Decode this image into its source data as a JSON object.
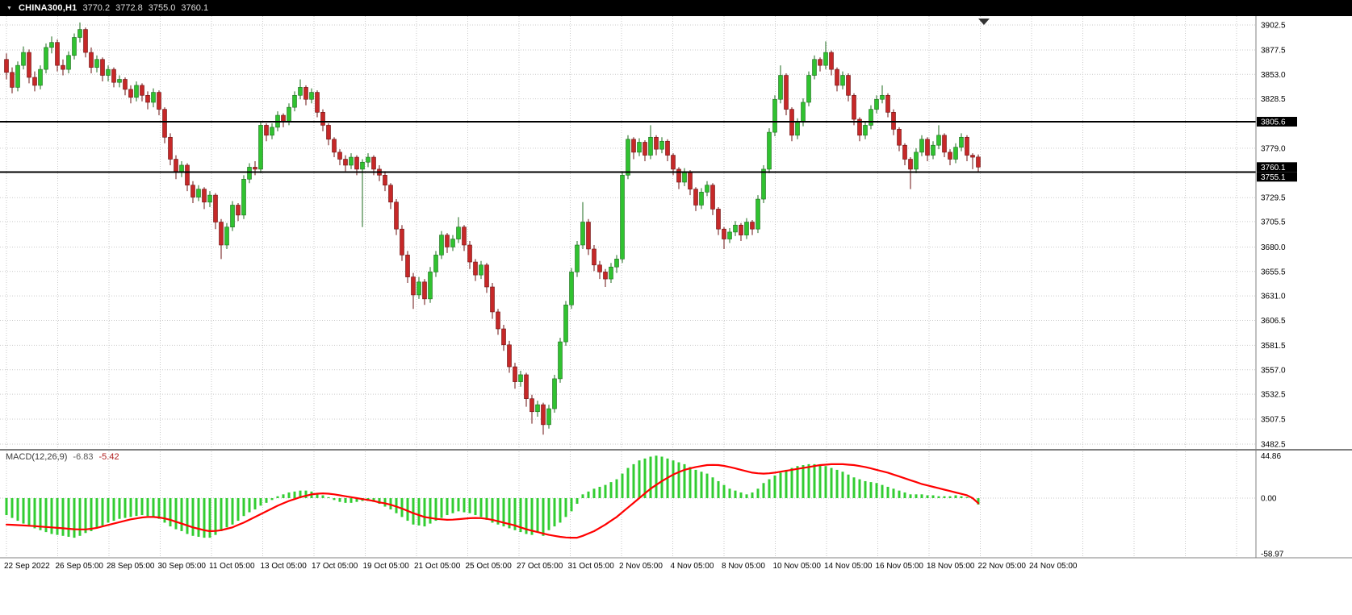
{
  "header": {
    "symbol_period": "CHINA300,H1",
    "open": "3770.2",
    "high": "3772.8",
    "low": "3755.0",
    "close": "3760.1"
  },
  "chart_data": {
    "type": "candlestick",
    "symbol": "CHINA300",
    "timeframe": "H1",
    "ylim": [
      3482.5,
      3902.5
    ],
    "price_ticks": [
      "3902.5",
      "3877.5",
      "3853.0",
      "3828.5",
      "3779.0",
      "3729.5",
      "3705.5",
      "3680.0",
      "3655.5",
      "3631.0",
      "3606.5",
      "3581.5",
      "3557.0",
      "3532.5",
      "3507.5",
      "3482.5"
    ],
    "hlines": [
      3805.6,
      3755.1
    ],
    "price_tags": [
      {
        "label": "3805.6",
        "price": 3805.6
      },
      {
        "label": "3760.1",
        "price": 3760.1
      },
      {
        "label": "3755.1",
        "price": 3755.1
      }
    ],
    "time_labels": [
      "22 Sep 2022",
      "26 Sep 05:00",
      "28 Sep 05:00",
      "30 Sep 05:00",
      "11 Oct 05:00",
      "13 Oct 05:00",
      "17 Oct 05:00",
      "19 Oct 05:00",
      "21 Oct 05:00",
      "25 Oct 05:00",
      "27 Oct 05:00",
      "31 Oct 05:00",
      "2 Nov 05:00",
      "4 Nov 05:00",
      "8 Nov 05:00",
      "10 Nov 05:00",
      "14 Nov 05:00",
      "16 Nov 05:00",
      "18 Nov 05:00",
      "22 Nov 05:00",
      "24 Nov 05:00"
    ],
    "candles": [
      [
        3868,
        3874,
        3848,
        3855
      ],
      [
        3855,
        3860,
        3834,
        3840
      ],
      [
        3840,
        3866,
        3836,
        3862
      ],
      [
        3862,
        3881,
        3858,
        3875
      ],
      [
        3875,
        3878,
        3844,
        3850
      ],
      [
        3850,
        3856,
        3836,
        3842
      ],
      [
        3842,
        3862,
        3838,
        3858
      ],
      [
        3858,
        3884,
        3854,
        3880
      ],
      [
        3880,
        3891,
        3874,
        3885
      ],
      [
        3885,
        3888,
        3856,
        3862
      ],
      [
        3862,
        3868,
        3852,
        3858
      ],
      [
        3858,
        3876,
        3854,
        3872
      ],
      [
        3872,
        3894,
        3868,
        3890
      ],
      [
        3890,
        3905,
        3885,
        3898
      ],
      [
        3898,
        3900,
        3870,
        3875
      ],
      [
        3875,
        3880,
        3854,
        3860
      ],
      [
        3860,
        3872,
        3855,
        3868
      ],
      [
        3868,
        3870,
        3846,
        3852
      ],
      [
        3852,
        3862,
        3846,
        3858
      ],
      [
        3858,
        3860,
        3840,
        3845
      ],
      [
        3845,
        3852,
        3840,
        3848
      ],
      [
        3848,
        3850,
        3832,
        3838
      ],
      [
        3838,
        3842,
        3824,
        3830
      ],
      [
        3830,
        3846,
        3826,
        3842
      ],
      [
        3842,
        3844,
        3826,
        3832
      ],
      [
        3832,
        3836,
        3818,
        3825
      ],
      [
        3825,
        3839,
        3820,
        3835
      ],
      [
        3835,
        3837,
        3812,
        3818
      ],
      [
        3818,
        3820,
        3784,
        3790
      ],
      [
        3790,
        3794,
        3762,
        3768
      ],
      [
        3768,
        3772,
        3748,
        3755
      ],
      [
        3755,
        3766,
        3750,
        3762
      ],
      [
        3762,
        3764,
        3736,
        3742
      ],
      [
        3742,
        3746,
        3724,
        3730
      ],
      [
        3730,
        3742,
        3726,
        3738
      ],
      [
        3738,
        3740,
        3718,
        3725
      ],
      [
        3725,
        3736,
        3720,
        3732
      ],
      [
        3732,
        3734,
        3698,
        3705
      ],
      [
        3705,
        3708,
        3668,
        3682
      ],
      [
        3682,
        3704,
        3678,
        3700
      ],
      [
        3700,
        3726,
        3696,
        3722
      ],
      [
        3722,
        3724,
        3706,
        3712
      ],
      [
        3712,
        3752,
        3708,
        3748
      ],
      [
        3748,
        3764,
        3744,
        3760
      ],
      [
        3760,
        3766,
        3752,
        3758
      ],
      [
        3758,
        3806,
        3754,
        3802
      ],
      [
        3802,
        3804,
        3786,
        3792
      ],
      [
        3792,
        3804,
        3788,
        3800
      ],
      [
        3800,
        3816,
        3796,
        3812
      ],
      [
        3812,
        3814,
        3800,
        3806
      ],
      [
        3806,
        3824,
        3802,
        3820
      ],
      [
        3820,
        3836,
        3816,
        3832
      ],
      [
        3832,
        3848,
        3828,
        3840
      ],
      [
        3840,
        3842,
        3822,
        3828
      ],
      [
        3828,
        3839,
        3824,
        3835
      ],
      [
        3835,
        3837,
        3810,
        3815
      ],
      [
        3815,
        3818,
        3796,
        3802
      ],
      [
        3802,
        3804,
        3782,
        3788
      ],
      [
        3788,
        3790,
        3770,
        3775
      ],
      [
        3775,
        3778,
        3762,
        3768
      ],
      [
        3768,
        3772,
        3756,
        3762
      ],
      [
        3762,
        3774,
        3758,
        3770
      ],
      [
        3770,
        3772,
        3752,
        3758
      ],
      [
        3758,
        3768,
        3700,
        3765
      ],
      [
        3765,
        3774,
        3760,
        3770
      ],
      [
        3770,
        3772,
        3752,
        3758
      ],
      [
        3758,
        3762,
        3746,
        3752
      ],
      [
        3752,
        3756,
        3736,
        3742
      ],
      [
        3742,
        3744,
        3718,
        3725
      ],
      [
        3725,
        3728,
        3692,
        3698
      ],
      [
        3698,
        3702,
        3666,
        3672
      ],
      [
        3672,
        3676,
        3644,
        3650
      ],
      [
        3650,
        3654,
        3618,
        3632
      ],
      [
        3632,
        3650,
        3628,
        3645
      ],
      [
        3645,
        3648,
        3622,
        3628
      ],
      [
        3628,
        3660,
        3624,
        3655
      ],
      [
        3655,
        3676,
        3650,
        3672
      ],
      [
        3672,
        3696,
        3668,
        3692
      ],
      [
        3692,
        3694,
        3674,
        3680
      ],
      [
        3680,
        3692,
        3676,
        3688
      ],
      [
        3688,
        3710,
        3684,
        3700
      ],
      [
        3700,
        3702,
        3676,
        3682
      ],
      [
        3682,
        3686,
        3658,
        3665
      ],
      [
        3665,
        3668,
        3646,
        3652
      ],
      [
        3652,
        3666,
        3648,
        3662
      ],
      [
        3662,
        3664,
        3634,
        3640
      ],
      [
        3640,
        3644,
        3608,
        3615
      ],
      [
        3615,
        3618,
        3592,
        3598
      ],
      [
        3598,
        3602,
        3576,
        3582
      ],
      [
        3582,
        3586,
        3554,
        3560
      ],
      [
        3560,
        3564,
        3538,
        3545
      ],
      [
        3545,
        3556,
        3540,
        3552
      ],
      [
        3552,
        3554,
        3520,
        3528
      ],
      [
        3528,
        3532,
        3503,
        3515
      ],
      [
        3515,
        3526,
        3510,
        3522
      ],
      [
        3522,
        3524,
        3492,
        3502
      ],
      [
        3502,
        3522,
        3498,
        3518
      ],
      [
        3518,
        3552,
        3514,
        3548
      ],
      [
        3548,
        3589,
        3544,
        3585
      ],
      [
        3585,
        3626,
        3581,
        3622
      ],
      [
        3622,
        3659,
        3618,
        3655
      ],
      [
        3655,
        3686,
        3650,
        3682
      ],
      [
        3682,
        3725,
        3678,
        3705
      ],
      [
        3705,
        3708,
        3672,
        3678
      ],
      [
        3678,
        3682,
        3656,
        3662
      ],
      [
        3662,
        3666,
        3648,
        3655
      ],
      [
        3655,
        3658,
        3640,
        3648
      ],
      [
        3648,
        3664,
        3644,
        3660
      ],
      [
        3660,
        3672,
        3654,
        3668
      ],
      [
        3668,
        3756,
        3664,
        3752
      ],
      [
        3752,
        3792,
        3748,
        3788
      ],
      [
        3788,
        3790,
        3768,
        3775
      ],
      [
        3775,
        3789,
        3771,
        3785
      ],
      [
        3785,
        3787,
        3766,
        3772
      ],
      [
        3772,
        3802,
        3768,
        3790
      ],
      [
        3790,
        3792,
        3772,
        3778
      ],
      [
        3778,
        3790,
        3774,
        3786
      ],
      [
        3786,
        3788,
        3766,
        3772
      ],
      [
        3772,
        3774,
        3752,
        3758
      ],
      [
        3758,
        3760,
        3738,
        3745
      ],
      [
        3745,
        3759,
        3741,
        3755
      ],
      [
        3755,
        3757,
        3732,
        3738
      ],
      [
        3738,
        3740,
        3716,
        3722
      ],
      [
        3722,
        3739,
        3718,
        3735
      ],
      [
        3735,
        3746,
        3731,
        3742
      ],
      [
        3742,
        3744,
        3712,
        3718
      ],
      [
        3718,
        3720,
        3692,
        3698
      ],
      [
        3698,
        3700,
        3678,
        3688
      ],
      [
        3688,
        3699,
        3684,
        3695
      ],
      [
        3695,
        3706,
        3691,
        3702
      ],
      [
        3702,
        3704,
        3686,
        3692
      ],
      [
        3692,
        3709,
        3688,
        3705
      ],
      [
        3705,
        3707,
        3692,
        3698
      ],
      [
        3698,
        3732,
        3694,
        3728
      ],
      [
        3728,
        3762,
        3724,
        3758
      ],
      [
        3758,
        3799,
        3754,
        3795
      ],
      [
        3795,
        3832,
        3791,
        3828
      ],
      [
        3828,
        3862,
        3824,
        3852
      ],
      [
        3852,
        3854,
        3812,
        3818
      ],
      [
        3818,
        3820,
        3786,
        3792
      ],
      [
        3792,
        3809,
        3788,
        3805
      ],
      [
        3805,
        3829,
        3801,
        3825
      ],
      [
        3825,
        3856,
        3821,
        3852
      ],
      [
        3852,
        3872,
        3848,
        3868
      ],
      [
        3868,
        3870,
        3856,
        3862
      ],
      [
        3862,
        3886,
        3858,
        3875
      ],
      [
        3875,
        3877,
        3852,
        3858
      ],
      [
        3858,
        3860,
        3836,
        3842
      ],
      [
        3842,
        3856,
        3838,
        3852
      ],
      [
        3852,
        3854,
        3826,
        3832
      ],
      [
        3832,
        3834,
        3802,
        3808
      ],
      [
        3808,
        3810,
        3786,
        3792
      ],
      [
        3792,
        3806,
        3788,
        3802
      ],
      [
        3802,
        3822,
        3798,
        3818
      ],
      [
        3818,
        3832,
        3814,
        3828
      ],
      [
        3828,
        3842,
        3824,
        3832
      ],
      [
        3832,
        3834,
        3810,
        3815
      ],
      [
        3815,
        3818,
        3792,
        3798
      ],
      [
        3798,
        3800,
        3776,
        3782
      ],
      [
        3782,
        3784,
        3762,
        3768
      ],
      [
        3768,
        3770,
        3738,
        3758
      ],
      [
        3758,
        3779,
        3754,
        3775
      ],
      [
        3775,
        3792,
        3771,
        3788
      ],
      [
        3788,
        3790,
        3766,
        3772
      ],
      [
        3772,
        3786,
        3768,
        3782
      ],
      [
        3782,
        3802,
        3778,
        3792
      ],
      [
        3792,
        3794,
        3770,
        3775
      ],
      [
        3775,
        3778,
        3762,
        3768
      ],
      [
        3768,
        3784,
        3764,
        3780
      ],
      [
        3780,
        3794,
        3776,
        3790
      ],
      [
        3790,
        3792,
        3766,
        3772
      ],
      [
        3772,
        3774,
        3758,
        3770
      ],
      [
        3770.2,
        3772.8,
        3755,
        3760.1
      ]
    ],
    "macd": {
      "label": "MACD(12,26,9)",
      "macd_value": "-6.83",
      "signal_value": "-5.42",
      "axis_ticks": [
        "44.86",
        "0.00",
        "-58.97"
      ],
      "hist": [
        -18,
        -21,
        -24,
        -27,
        -30,
        -32,
        -34,
        -36,
        -38,
        -39,
        -40,
        -41,
        -42,
        -40,
        -37,
        -35,
        -32,
        -29,
        -26,
        -24,
        -22,
        -21,
        -20,
        -19,
        -18,
        -19,
        -20,
        -22,
        -26,
        -30,
        -33,
        -35,
        -38,
        -40,
        -41,
        -42,
        -42,
        -39,
        -35,
        -31,
        -28,
        -24,
        -19,
        -15,
        -12,
        -8,
        -5,
        -2,
        2,
        4,
        6,
        7,
        8,
        8,
        7,
        5,
        3,
        1,
        -2,
        -4,
        -5,
        -5,
        -4,
        -3,
        -3,
        -4,
        -6,
        -9,
        -12,
        -16,
        -20,
        -24,
        -28,
        -29,
        -30,
        -27,
        -24,
        -21,
        -18,
        -16,
        -14,
        -15,
        -16,
        -18,
        -20,
        -23,
        -26,
        -28,
        -30,
        -32,
        -34,
        -36,
        -38,
        -39,
        -36,
        -40,
        -34,
        -30,
        -26,
        -20,
        -14,
        -6,
        4,
        7,
        10,
        12,
        14,
        17,
        20,
        26,
        32,
        36,
        40,
        42,
        44,
        45,
        44,
        42,
        40,
        38,
        36,
        33,
        30,
        28,
        26,
        22,
        18,
        14,
        10,
        8,
        6,
        4,
        6,
        10,
        16,
        20,
        24,
        27,
        30,
        32,
        34,
        35,
        36,
        36,
        35,
        34,
        32,
        30,
        28,
        25,
        22,
        20,
        18,
        17,
        16,
        14,
        12,
        10,
        8,
        6,
        4,
        4,
        4,
        3,
        3,
        2,
        2,
        2,
        3,
        2,
        1,
        -1,
        -6.8
      ],
      "signal": [
        -28,
        -28.3,
        -28.6,
        -29,
        -29.3,
        -29.7,
        -30.2,
        -30.6,
        -31,
        -31.5,
        -32,
        -32.5,
        -33,
        -33.2,
        -33.2,
        -32.5,
        -31.5,
        -30,
        -28.5,
        -27,
        -25.5,
        -24,
        -22.5,
        -21.5,
        -20.5,
        -20,
        -20,
        -20.5,
        -21.5,
        -23,
        -25,
        -27,
        -29,
        -31,
        -32.5,
        -34,
        -35,
        -34.8,
        -34,
        -32.5,
        -31,
        -28.5,
        -26,
        -23,
        -20,
        -17,
        -14,
        -11,
        -8,
        -5.5,
        -3,
        -1,
        1,
        2.5,
        4,
        4.7,
        5,
        4.7,
        4,
        3,
        2,
        1,
        0,
        -1,
        -2,
        -3,
        -4.5,
        -5.5,
        -7,
        -9,
        -11,
        -13.5,
        -16,
        -18,
        -20,
        -21,
        -22,
        -22.5,
        -23,
        -22.8,
        -22.3,
        -21.8,
        -21.3,
        -21,
        -21.2,
        -22,
        -23,
        -24.5,
        -26,
        -27.5,
        -29,
        -31,
        -33,
        -34.5,
        -36,
        -37.5,
        -39,
        -40,
        -41,
        -41.7,
        -42,
        -42,
        -40,
        -37.5,
        -35,
        -31.5,
        -28,
        -24,
        -20,
        -15,
        -10,
        -5,
        0,
        5,
        10,
        14,
        18,
        21.5,
        25,
        27.5,
        30,
        31.5,
        33,
        34,
        35,
        35.2,
        35,
        34.2,
        33,
        31.5,
        30,
        28.5,
        27,
        26.3,
        26,
        26.3,
        27,
        28,
        29,
        30,
        31,
        32,
        33,
        34,
        35,
        35.5,
        36,
        36,
        36,
        35.5,
        35,
        34,
        33,
        31.5,
        30,
        28.5,
        27,
        25,
        23,
        21,
        19,
        17,
        15,
        13.5,
        12,
        10.5,
        9,
        7.5,
        6,
        4.5,
        3,
        0,
        -5.4
      ]
    },
    "colors": {
      "up": "#30C230",
      "up_dark": "#1E6B1E",
      "down": "#C62828",
      "down_dark": "#6B1212",
      "grid": "#C9C9C9",
      "hline": "#000000",
      "macd_hist": "#32CD32",
      "macd_signal": "#FF0000",
      "header_bg": "#000000",
      "tag_bg": "#000000",
      "axis_text": "#000000"
    }
  }
}
